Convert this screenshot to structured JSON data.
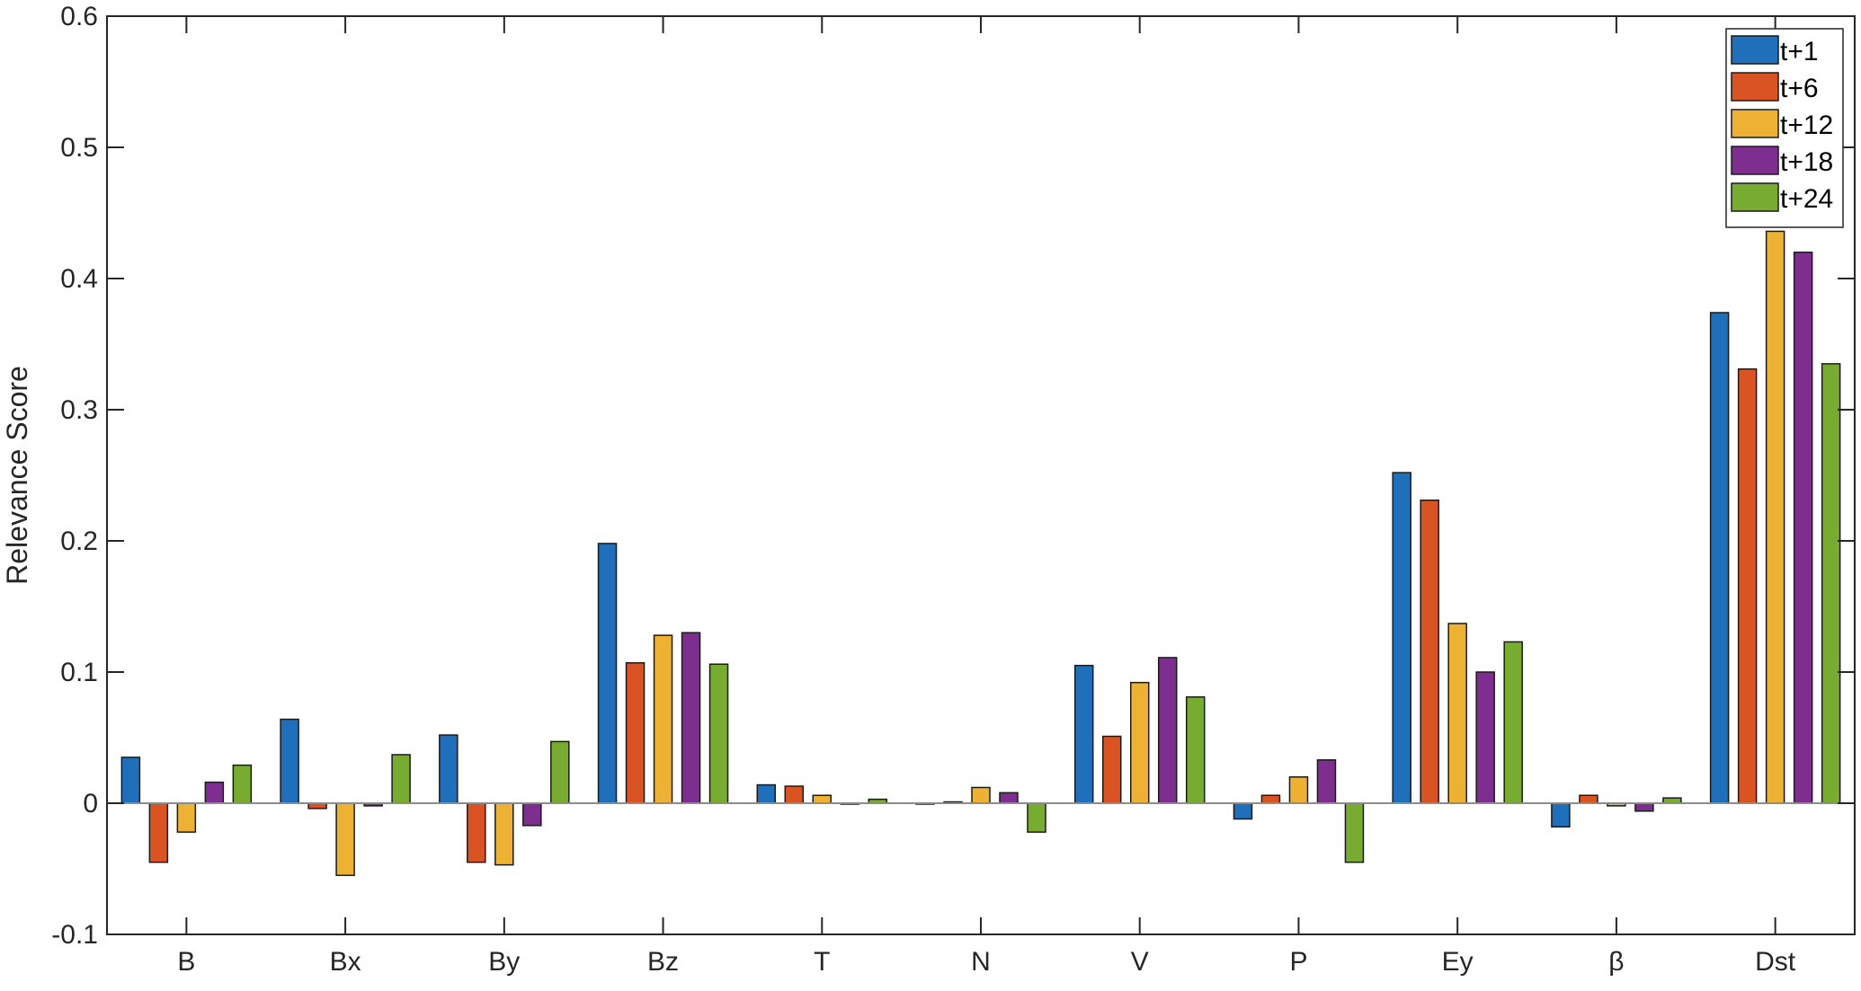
{
  "chart_data": {
    "type": "bar",
    "title": "",
    "xlabel": "",
    "ylabel": "Relevance Score",
    "ylim": [
      -0.1,
      0.6
    ],
    "yticks": [
      "-0.1",
      "0",
      "0.1",
      "0.2",
      "0.3",
      "0.4",
      "0.5",
      "0.6"
    ],
    "grid": false,
    "legend_position": "top-right",
    "categories": [
      "B",
      "Bx",
      "By",
      "Bz",
      "T",
      "N",
      "V",
      "P",
      "Ey",
      "β",
      "Dst"
    ],
    "series": [
      {
        "name": "t+1",
        "color": "#1f6fbb",
        "values": [
          0.035,
          0.064,
          0.052,
          0.198,
          0.014,
          0.0,
          0.105,
          -0.012,
          0.252,
          -0.018,
          0.374
        ]
      },
      {
        "name": "t+6",
        "color": "#d95323",
        "values": [
          -0.045,
          -0.004,
          -0.045,
          0.107,
          0.013,
          0.001,
          0.051,
          0.006,
          0.231,
          0.006,
          0.331
        ]
      },
      {
        "name": "t+12",
        "color": "#edb233",
        "values": [
          -0.022,
          -0.055,
          -0.047,
          0.128,
          0.006,
          0.012,
          0.092,
          0.02,
          0.137,
          -0.002,
          0.436
        ]
      },
      {
        "name": "t+18",
        "color": "#7e2e8e",
        "values": [
          0.016,
          -0.002,
          -0.017,
          0.13,
          0.0,
          0.008,
          0.111,
          0.033,
          0.1,
          -0.006,
          0.42
        ]
      },
      {
        "name": "t+24",
        "color": "#77ac30",
        "values": [
          0.029,
          0.037,
          0.047,
          0.106,
          0.003,
          -0.022,
          0.081,
          -0.045,
          0.123,
          0.004,
          0.335
        ]
      }
    ]
  }
}
